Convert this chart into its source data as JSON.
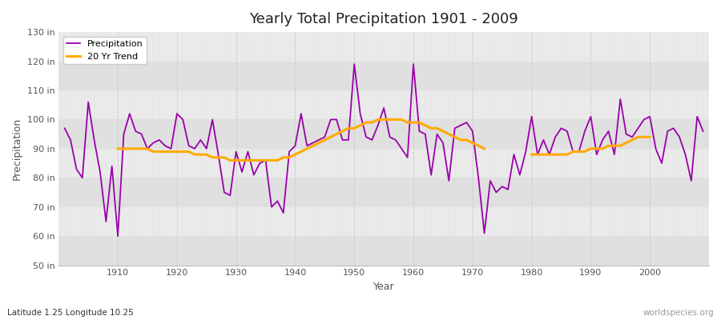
{
  "title": "Yearly Total Precipitation 1901 - 2009",
  "xlabel": "Year",
  "ylabel": "Precipitation",
  "subtitle": "Latitude 1.25 Longitude 10.25",
  "watermark": "worldspecies.org",
  "fig_bg_color": "#ffffff",
  "plot_bg_color": "#e8e8e8",
  "band_color_light": "#ebebeb",
  "band_color_dark": "#dcdcdc",
  "ylim": [
    50,
    130
  ],
  "yticks": [
    50,
    60,
    70,
    80,
    90,
    100,
    110,
    120,
    130
  ],
  "ytick_labels": [
    "50 in",
    "60 in",
    "70 in",
    "80 in",
    "90 in",
    "100 in",
    "110 in",
    "120 in",
    "130 in"
  ],
  "xlim_min": 1900,
  "xlim_max": 2010,
  "precip_color": "#9900aa",
  "trend_color": "#ffaa00",
  "legend_precip": "Precipitation",
  "legend_trend": "20 Yr Trend",
  "years": [
    1901,
    1902,
    1903,
    1904,
    1905,
    1906,
    1907,
    1908,
    1909,
    1910,
    1911,
    1912,
    1913,
    1914,
    1915,
    1916,
    1917,
    1918,
    1919,
    1920,
    1921,
    1922,
    1923,
    1924,
    1925,
    1926,
    1927,
    1928,
    1929,
    1930,
    1931,
    1932,
    1933,
    1934,
    1935,
    1936,
    1937,
    1938,
    1939,
    1940,
    1941,
    1942,
    1943,
    1944,
    1945,
    1946,
    1947,
    1948,
    1949,
    1950,
    1951,
    1952,
    1953,
    1954,
    1955,
    1956,
    1957,
    1958,
    1959,
    1960,
    1961,
    1962,
    1963,
    1964,
    1965,
    1966,
    1967,
    1968,
    1969,
    1970,
    1971,
    1972,
    1973,
    1974,
    1975,
    1976,
    1977,
    1978,
    1979,
    1980,
    1981,
    1982,
    1983,
    1984,
    1985,
    1986,
    1987,
    1988,
    1989,
    1990,
    1991,
    1992,
    1993,
    1994,
    1995,
    1996,
    1997,
    1998,
    1999,
    2000,
    2001,
    2002,
    2003,
    2004,
    2005,
    2006,
    2007,
    2008,
    2009
  ],
  "precip": [
    97,
    93,
    83,
    80,
    106,
    93,
    82,
    65,
    84,
    60,
    95,
    102,
    96,
    95,
    90,
    92,
    93,
    91,
    90,
    102,
    100,
    91,
    90,
    93,
    90,
    100,
    88,
    75,
    74,
    89,
    82,
    89,
    81,
    85,
    86,
    70,
    72,
    68,
    89,
    91,
    102,
    91,
    92,
    93,
    94,
    100,
    100,
    93,
    93,
    119,
    102,
    94,
    93,
    98,
    104,
    94,
    93,
    90,
    87,
    119,
    96,
    95,
    81,
    95,
    92,
    79,
    97,
    98,
    99,
    96,
    80,
    61,
    79,
    75,
    77,
    76,
    88,
    81,
    89,
    101,
    88,
    93,
    88,
    94,
    97,
    96,
    89,
    89,
    96,
    101,
    88,
    93,
    96,
    88,
    107,
    95,
    94,
    97,
    100,
    101,
    90,
    85,
    96,
    97,
    94,
    88,
    79,
    101,
    96
  ],
  "trend": [
    null,
    null,
    null,
    null,
    null,
    null,
    null,
    null,
    null,
    90,
    90,
    90,
    90,
    90,
    90,
    89,
    89,
    89,
    89,
    89,
    89,
    89,
    88,
    88,
    88,
    87,
    87,
    87,
    86,
    86,
    86,
    86,
    86,
    86,
    86,
    86,
    86,
    87,
    87,
    88,
    89,
    90,
    91,
    92,
    93,
    94,
    95,
    96,
    97,
    97,
    98,
    99,
    99,
    100,
    100,
    100,
    100,
    100,
    99,
    99,
    99,
    98,
    97,
    97,
    96,
    95,
    94,
    93,
    93,
    92,
    91,
    90,
    null,
    null,
    null,
    null,
    null,
    null,
    null,
    88,
    88,
    88,
    88,
    88,
    88,
    88,
    89,
    89,
    89,
    90,
    90,
    90,
    91,
    91,
    91,
    92,
    93,
    94,
    94,
    94,
    null,
    null,
    null,
    null,
    null,
    null,
    null,
    null,
    null
  ]
}
